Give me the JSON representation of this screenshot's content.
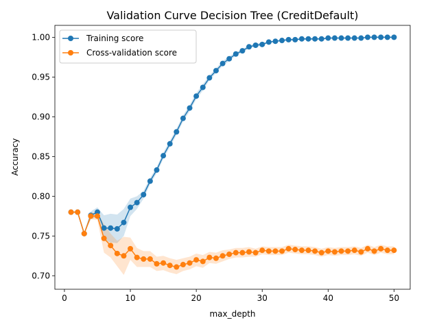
{
  "chart_data": {
    "type": "line",
    "title": "Validation Curve Decision Tree (CreditDefault)",
    "xlabel": "max_depth",
    "ylabel": "Accuracy",
    "xlim": [
      -1.45,
      52.45
    ],
    "ylim": [
      0.683,
      1.015
    ],
    "xticks": [
      0,
      10,
      20,
      30,
      40,
      50
    ],
    "yticks": [
      0.7,
      0.75,
      0.8,
      0.85,
      0.9,
      0.95,
      1.0
    ],
    "ytick_labels": [
      "0.70",
      "0.75",
      "0.80",
      "0.85",
      "0.90",
      "0.95",
      "1.00"
    ],
    "legend_position": "top-left",
    "x": [
      1,
      2,
      3,
      4,
      5,
      6,
      7,
      8,
      9,
      10,
      11,
      12,
      13,
      14,
      15,
      16,
      17,
      18,
      19,
      20,
      21,
      22,
      23,
      24,
      25,
      26,
      27,
      28,
      29,
      30,
      31,
      32,
      33,
      34,
      35,
      36,
      37,
      38,
      39,
      40,
      41,
      42,
      43,
      44,
      45,
      46,
      47,
      48,
      49,
      50
    ],
    "series": [
      {
        "name": "Training score",
        "color": "#1f77b4",
        "values": [
          0.78,
          0.78,
          0.753,
          0.776,
          0.78,
          0.76,
          0.76,
          0.759,
          0.767,
          0.786,
          0.792,
          0.802,
          0.819,
          0.833,
          0.851,
          0.866,
          0.881,
          0.898,
          0.911,
          0.926,
          0.937,
          0.949,
          0.958,
          0.967,
          0.973,
          0.979,
          0.983,
          0.988,
          0.99,
          0.991,
          0.994,
          0.995,
          0.996,
          0.997,
          0.997,
          0.998,
          0.998,
          0.998,
          0.998,
          0.999,
          0.999,
          0.999,
          0.999,
          0.999,
          0.999,
          1.0,
          1.0,
          1.0,
          1.0,
          1.0
        ],
        "band": [
          0.0,
          0.0,
          0.0,
          0.005,
          0.006,
          0.016,
          0.018,
          0.018,
          0.017,
          0.011,
          0.008,
          0.005,
          0.004,
          0.004,
          0.004,
          0.004,
          0.004,
          0.004,
          0.004,
          0.004,
          0.004,
          0.003,
          0.003,
          0.003,
          0.003,
          0.002,
          0.002,
          0.002,
          0.002,
          0.002,
          0.001,
          0.001,
          0.001,
          0.001,
          0.001,
          0.001,
          0.001,
          0.001,
          0.001,
          0.001,
          0.0,
          0.0,
          0.0,
          0.0,
          0.0,
          0.0,
          0.0,
          0.0,
          0.0,
          0.0
        ]
      },
      {
        "name": "Cross-validation score",
        "color": "#ff7f0e",
        "values": [
          0.78,
          0.78,
          0.753,
          0.775,
          0.775,
          0.747,
          0.738,
          0.728,
          0.725,
          0.734,
          0.723,
          0.721,
          0.721,
          0.715,
          0.716,
          0.713,
          0.711,
          0.714,
          0.716,
          0.72,
          0.718,
          0.723,
          0.722,
          0.725,
          0.727,
          0.729,
          0.729,
          0.73,
          0.729,
          0.732,
          0.731,
          0.731,
          0.731,
          0.734,
          0.733,
          0.732,
          0.732,
          0.731,
          0.729,
          0.731,
          0.73,
          0.731,
          0.731,
          0.732,
          0.73,
          0.734,
          0.731,
          0.734,
          0.732,
          0.732
        ],
        "band": [
          0.0,
          0.0,
          0.0,
          0.004,
          0.005,
          0.018,
          0.015,
          0.016,
          0.024,
          0.014,
          0.012,
          0.01,
          0.01,
          0.009,
          0.009,
          0.009,
          0.009,
          0.008,
          0.008,
          0.008,
          0.008,
          0.007,
          0.007,
          0.007,
          0.006,
          0.006,
          0.006,
          0.006,
          0.005,
          0.005,
          0.005,
          0.005,
          0.005,
          0.005,
          0.005,
          0.005,
          0.005,
          0.005,
          0.005,
          0.005,
          0.005,
          0.005,
          0.005,
          0.005,
          0.005,
          0.005,
          0.005,
          0.005,
          0.005,
          0.005
        ]
      }
    ]
  }
}
